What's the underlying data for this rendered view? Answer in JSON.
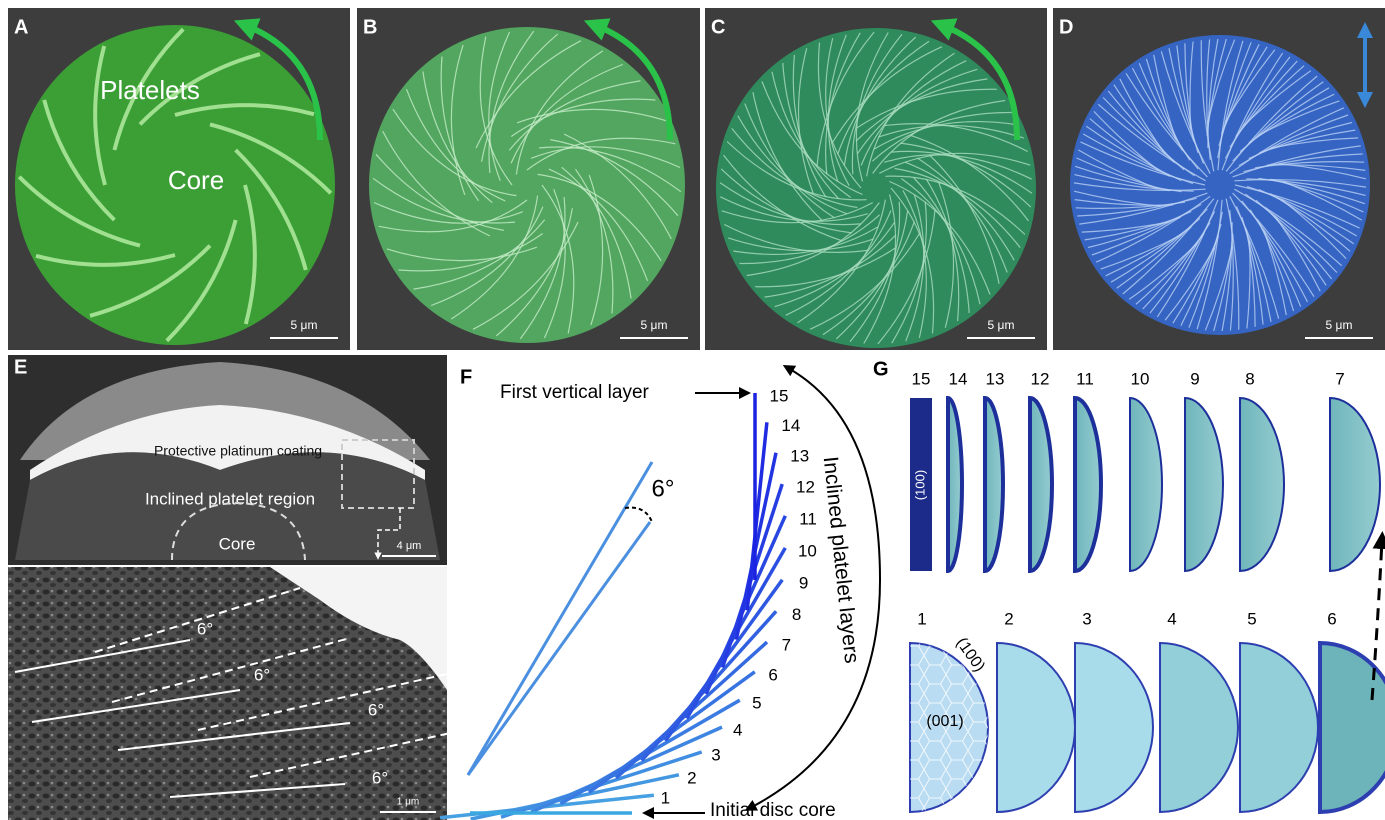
{
  "panels": {
    "a": {
      "label": "A",
      "platelets": "Platelets",
      "core": "Core",
      "scale": "5 μm"
    },
    "b": {
      "label": "B",
      "scale": "5 μm"
    },
    "c": {
      "label": "C",
      "scale": "5 μm"
    },
    "d": {
      "label": "D",
      "scale": "5 μm"
    },
    "e": {
      "label": "E",
      "coating": "Protective platinum coating",
      "region": "Inclined platelet region",
      "core": "Core",
      "scale_top": "4 μm",
      "angles": [
        "6°",
        "6°",
        "6°",
        "6°"
      ],
      "scale_bottom": "1 μm"
    },
    "f": {
      "label": "F",
      "first_vertical": "First vertical layer",
      "inclined": "Inclined platelet layers",
      "initial_core": "Initial disc core",
      "angle": "6°",
      "layers": [
        "1",
        "2",
        "3",
        "4",
        "5",
        "6",
        "7",
        "8",
        "9",
        "10",
        "11",
        "12",
        "13",
        "14",
        "15"
      ]
    },
    "g": {
      "label": "G",
      "top_row": [
        "15",
        "14",
        "13",
        "12",
        "11",
        "10",
        "9",
        "8",
        "7"
      ],
      "bottom_row": [
        "1",
        "2",
        "3",
        "4",
        "5",
        "6"
      ],
      "face_100_top": "(100)",
      "face_100": "(100)",
      "face_001": "(001)"
    }
  }
}
